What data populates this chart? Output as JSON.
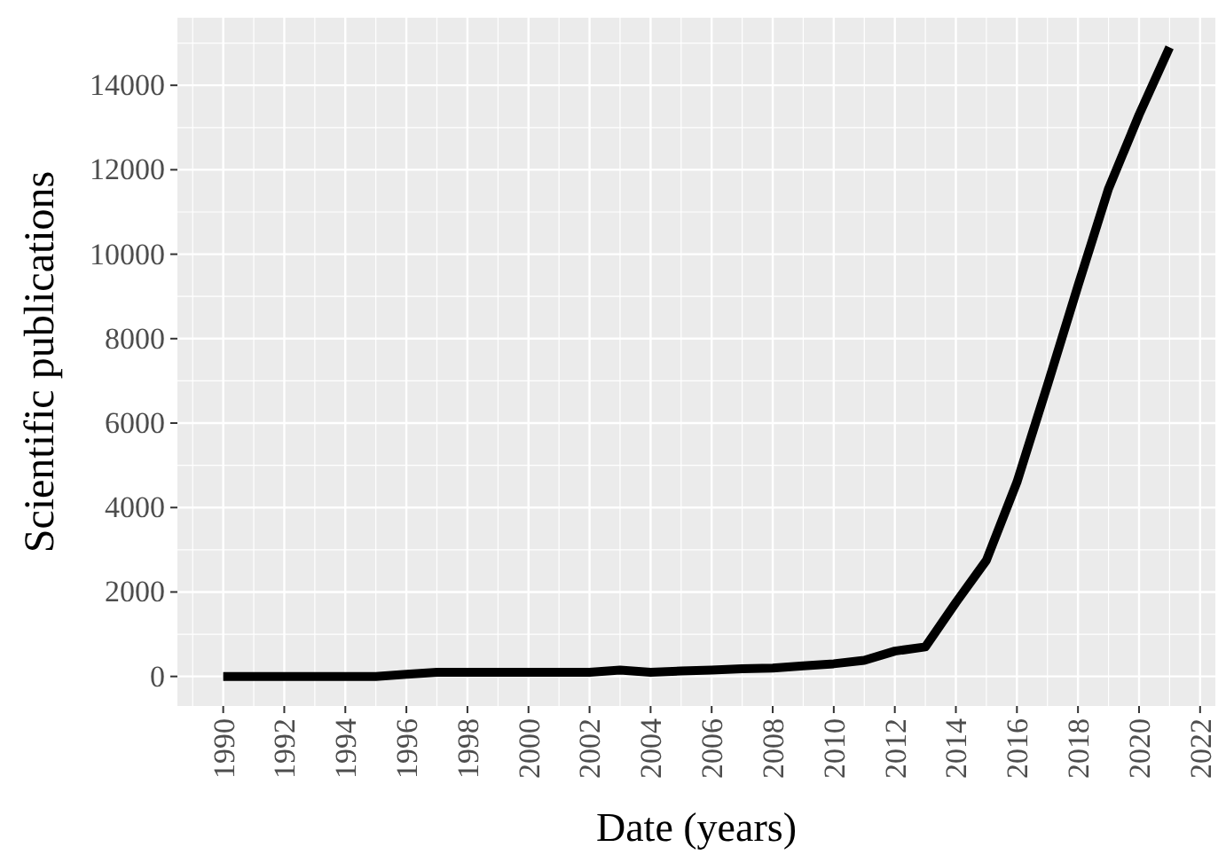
{
  "chart_data": {
    "type": "line",
    "xlabel": "Date (years)",
    "ylabel": "Scientific publications",
    "x": [
      1990,
      1991,
      1992,
      1993,
      1994,
      1995,
      1996,
      1997,
      1998,
      1999,
      2000,
      2001,
      2002,
      2003,
      2004,
      2005,
      2006,
      2007,
      2008,
      2009,
      2010,
      2011,
      2012,
      2013,
      2014,
      2015,
      2016,
      2017,
      2018,
      2019,
      2020,
      2021
    ],
    "series": [
      {
        "color": "#000000",
        "values": [
          0,
          0,
          0,
          0,
          0,
          0,
          50,
          100,
          100,
          100,
          100,
          100,
          100,
          150,
          100,
          130,
          150,
          180,
          200,
          250,
          300,
          380,
          600,
          700,
          1750,
          2750,
          4600,
          6900,
          9250,
          11550,
          13300,
          14900
        ]
      }
    ],
    "xlim": [
      1988.5,
      2022.5
    ],
    "ylim": [
      -700,
      15600
    ],
    "xticks": [
      1990,
      1992,
      1994,
      1996,
      1998,
      2000,
      2002,
      2004,
      2006,
      2008,
      2010,
      2012,
      2014,
      2016,
      2018,
      2020,
      2022
    ],
    "yticks": [
      0,
      2000,
      4000,
      6000,
      8000,
      10000,
      12000,
      14000
    ],
    "grid": true,
    "line_style": "solid",
    "marker": "none"
  }
}
